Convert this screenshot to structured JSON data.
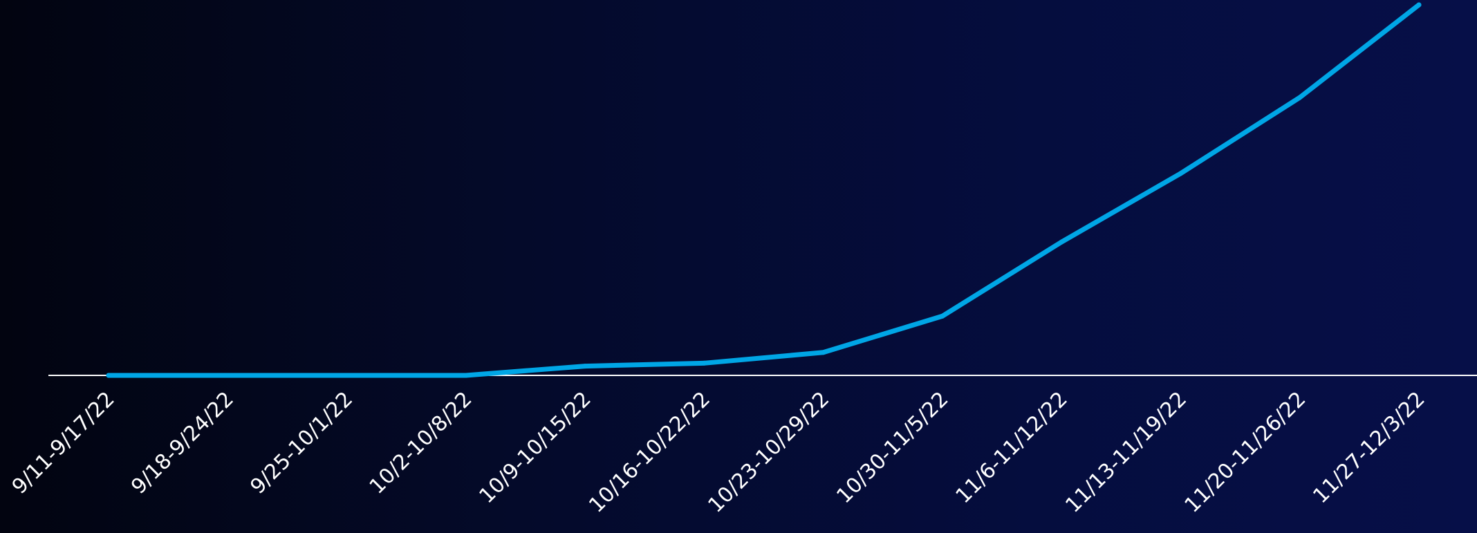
{
  "chart_data": {
    "type": "line",
    "title": "",
    "xlabel": "",
    "ylabel": "",
    "categories": [
      "9/11-9/17/22",
      "9/18-9/24/22",
      "9/25-10/1/22",
      "10/2-10/8/22",
      "10/9-10/15/22",
      "10/16-10/22/22",
      "10/23-10/29/22",
      "10/30-11/5/22",
      "11/6-11/12/22",
      "11/13-11/19/22",
      "11/20-11/26/22",
      "11/27-12/3/22"
    ],
    "series": [
      {
        "values": [
          0,
          0,
          0,
          0,
          2.5,
          3.3,
          6.2,
          16,
          36,
          54.5,
          75,
          100
        ]
      }
    ],
    "ylim": [
      0,
      100
    ],
    "grid": false,
    "legend": "none",
    "colors": {
      "line": "#00a6e6",
      "baseline": "#ffffff",
      "text": "#ffffff"
    }
  }
}
